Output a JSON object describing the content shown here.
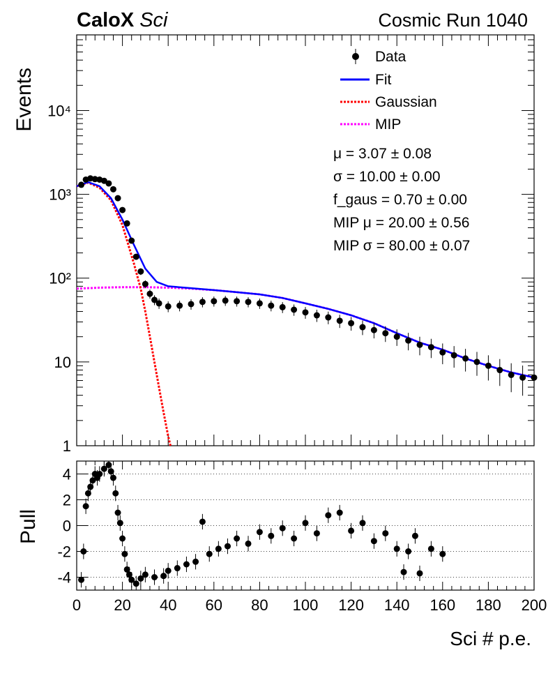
{
  "header": {
    "brand_bold": "CaloX",
    "brand_italic": "Sci",
    "run_label": "Cosmic Run 1040"
  },
  "legend": {
    "entries": [
      {
        "label": "Data",
        "style": "marker"
      },
      {
        "label": "Fit",
        "style": "solid",
        "color": "#0000ff"
      },
      {
        "label": "Gaussian",
        "style": "dotted",
        "color": "#ff0000"
      },
      {
        "label": "MIP",
        "style": "dotted",
        "color": "#ff00ff"
      }
    ]
  },
  "fit_results": [
    "μ = 3.07 ± 0.08",
    "σ = 10.00 ± 0.00",
    "f_gaus = 0.70 ± 0.00",
    "MIP μ = 20.00 ± 0.56",
    "MIP σ = 80.00 ± 0.07"
  ],
  "chart_data": [
    {
      "type": "scatter",
      "ylabel": "Events",
      "yscale": "log",
      "xlim": [
        0,
        200
      ],
      "ylim": [
        1,
        80000
      ],
      "ytick_labels": [
        "1",
        "10",
        "10²",
        "10³",
        "10⁴"
      ],
      "ytick_values": [
        1,
        10,
        100,
        1000,
        10000
      ],
      "series": [
        {
          "name": "Data",
          "x": [
            2,
            4,
            6,
            8,
            10,
            12,
            14,
            16,
            18,
            20,
            22,
            24,
            26,
            28,
            30,
            32,
            34,
            36,
            40,
            45,
            50,
            55,
            60,
            65,
            70,
            75,
            80,
            85,
            90,
            95,
            100,
            105,
            110,
            115,
            120,
            125,
            130,
            135,
            140,
            145,
            150,
            155,
            160,
            165,
            170,
            175,
            180,
            185,
            190,
            195,
            200
          ],
          "y": [
            1300,
            1500,
            1550,
            1520,
            1500,
            1450,
            1350,
            1150,
            900,
            650,
            450,
            280,
            180,
            120,
            85,
            65,
            55,
            50,
            46,
            47,
            49,
            52,
            53,
            54,
            53,
            52,
            50,
            47,
            45,
            42,
            39,
            36,
            34,
            31,
            29,
            26,
            24,
            22,
            20,
            18,
            16,
            15,
            13,
            12,
            11,
            10,
            9,
            8,
            7,
            6.5,
            6.5
          ]
        },
        {
          "name": "Fit",
          "x": [
            0,
            5,
            10,
            15,
            20,
            25,
            30,
            35,
            40,
            50,
            60,
            70,
            80,
            90,
            100,
            110,
            120,
            130,
            140,
            150,
            160,
            170,
            180,
            190,
            200
          ],
          "y": [
            1250,
            1400,
            1250,
            900,
            500,
            250,
            130,
            90,
            80,
            76,
            72,
            68,
            64,
            58,
            50,
            43,
            36,
            29,
            22,
            17,
            14,
            11,
            9,
            7.5,
            6.5
          ]
        },
        {
          "name": "Gaussian",
          "x": [
            0,
            5,
            10,
            15,
            20,
            25,
            28,
            30,
            32,
            35,
            38,
            40,
            41
          ],
          "y": [
            1250,
            1380,
            1200,
            850,
            430,
            150,
            75,
            40,
            20,
            7,
            2.5,
            1.3,
            1.0
          ]
        },
        {
          "name": "MIP",
          "x": [
            0,
            10,
            20,
            30,
            40,
            50,
            60,
            70,
            80,
            90,
            100,
            110,
            120,
            130,
            140,
            150,
            160,
            170,
            180,
            190,
            200
          ],
          "y": [
            75,
            77,
            78,
            78,
            77,
            75,
            72,
            68,
            64,
            58,
            50,
            43,
            36,
            29,
            22,
            17,
            14,
            11,
            9,
            7.5,
            6.5
          ]
        }
      ]
    },
    {
      "type": "scatter",
      "ylabel": "Pull",
      "xlabel": "Sci # p.e.",
      "xlim": [
        0,
        200
      ],
      "ylim": [
        -5,
        5
      ],
      "xticks": [
        0,
        20,
        40,
        60,
        80,
        100,
        120,
        140,
        160,
        180,
        200
      ],
      "yticks": [
        -4,
        -2,
        0,
        2,
        4
      ],
      "series": [
        {
          "name": "Pull",
          "x": [
            2,
            3,
            4,
            5,
            6,
            7,
            8,
            9,
            10,
            12,
            14,
            15,
            16,
            17,
            18,
            19,
            20,
            21,
            22,
            23,
            24,
            26,
            28,
            30,
            34,
            38,
            40,
            44,
            48,
            52,
            55,
            58,
            62,
            66,
            70,
            75,
            80,
            85,
            90,
            95,
            100,
            105,
            110,
            115,
            120,
            125,
            130,
            135,
            140,
            143,
            145,
            148,
            150,
            155,
            160
          ],
          "y": [
            -4.2,
            -2.0,
            1.5,
            2.5,
            3.0,
            3.5,
            4.0,
            3.7,
            4.0,
            4.4,
            4.7,
            4.2,
            3.7,
            2.5,
            1.0,
            0.2,
            -1.0,
            -2.2,
            -3.4,
            -3.8,
            -4.2,
            -4.5,
            -4.1,
            -3.8,
            -4.0,
            -3.9,
            -3.5,
            -3.3,
            -3.0,
            -2.8,
            0.3,
            -2.2,
            -1.8,
            -1.6,
            -1.0,
            -1.4,
            -0.5,
            -0.8,
            -0.2,
            -1.0,
            0.2,
            -0.6,
            0.8,
            1.0,
            -0.4,
            0.2,
            -1.2,
            -0.6,
            -1.8,
            -3.6,
            -2.0,
            -0.8,
            -3.7,
            -1.8,
            -2.2
          ]
        }
      ]
    }
  ],
  "axes": {
    "x_tick_labels": [
      "0",
      "20",
      "40",
      "60",
      "80",
      "100",
      "120",
      "140",
      "160",
      "180",
      "200"
    ],
    "pull_tick_labels": [
      "-4",
      "-2",
      "0",
      "2",
      "4"
    ],
    "xlabel": "Sci # p.e."
  }
}
